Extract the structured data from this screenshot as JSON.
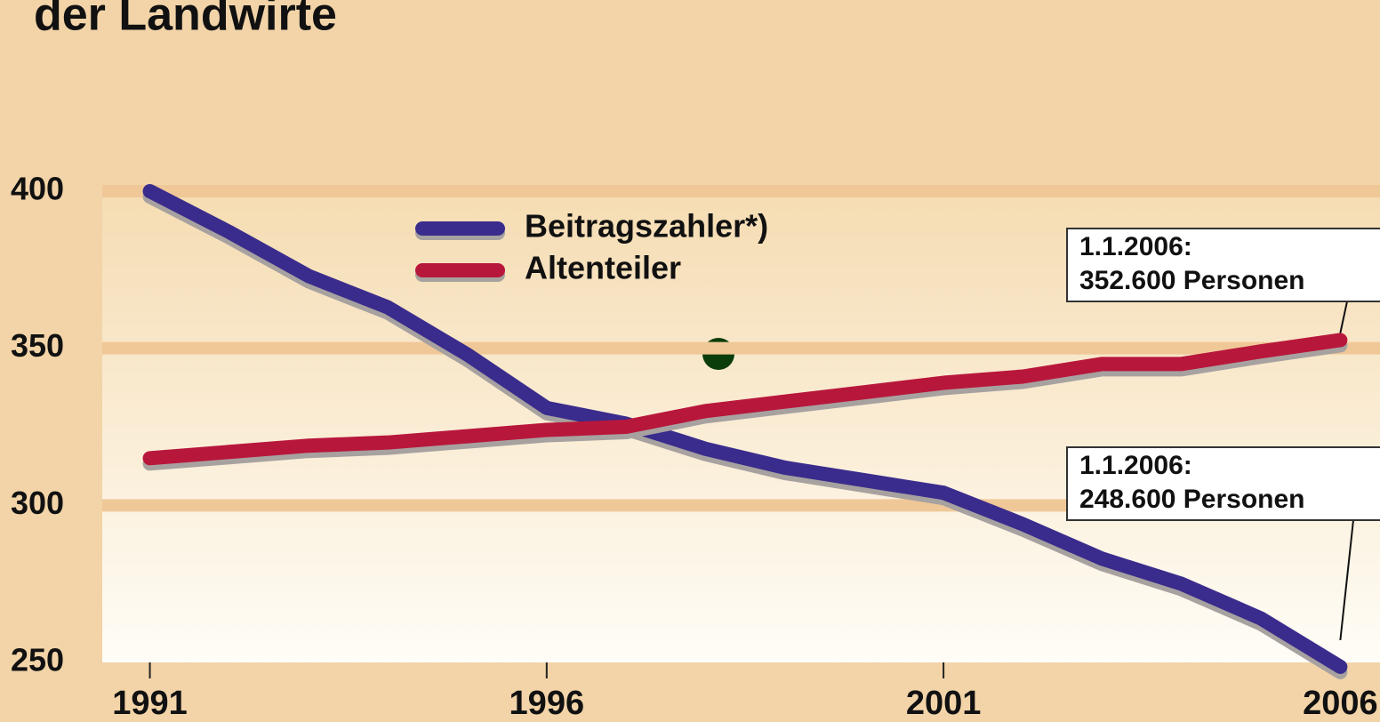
{
  "chart_data": {
    "type": "line",
    "title": "der Landwirte",
    "x": [
      1991,
      1992,
      1993,
      1994,
      1995,
      1996,
      1997,
      1998,
      1999,
      2000,
      2001,
      2002,
      2003,
      2004,
      2005,
      2006
    ],
    "series": [
      {
        "name": "Beitragszahler*)",
        "color": "#3a2c8c",
        "values": [
          400,
          387,
          373,
          363,
          348,
          331,
          326,
          318,
          312,
          308,
          304,
          294,
          283,
          275,
          264,
          248.6
        ]
      },
      {
        "name": "Altenteiler",
        "color": "#b8173c",
        "values": [
          315,
          317,
          319,
          320,
          322,
          324,
          325,
          330,
          333,
          336,
          339,
          341,
          345,
          345,
          349,
          352.6
        ]
      }
    ],
    "xlim": [
      1990.4,
      2006.5
    ],
    "xticks": [
      1991,
      1996,
      2001,
      2006
    ],
    "ylim": [
      250,
      400
    ],
    "yticks": [
      250,
      300,
      350,
      400
    ],
    "grid": true,
    "legend": "top-left",
    "annotations": [
      {
        "lines": [
          "1.1.2006:",
          "352.600 Personen"
        ],
        "series": 1
      },
      {
        "lines": [
          "1.1.2006:",
          "248.600 Personen"
        ],
        "series": 0
      }
    ]
  }
}
